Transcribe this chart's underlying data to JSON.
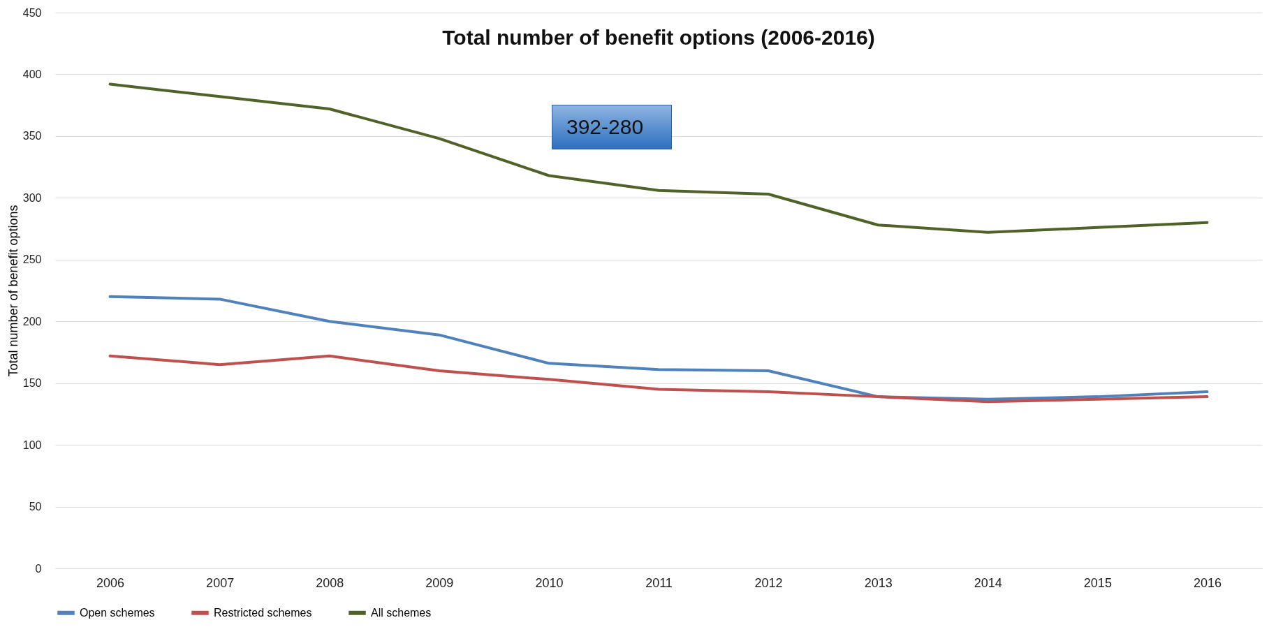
{
  "chart_data": {
    "type": "line",
    "title": "Total number of benefit options (2006-2016)",
    "ylabel": "Total number of benefit options",
    "categories": [
      "2006",
      "2007",
      "2008",
      "2009",
      "2010",
      "2011",
      "2012",
      "2013",
      "2014",
      "2015",
      "2016"
    ],
    "series": [
      {
        "name": "Open schemes",
        "color": "#4f81bd",
        "values": [
          220,
          218,
          200,
          189,
          166,
          161,
          160,
          139,
          137,
          139,
          143
        ]
      },
      {
        "name": "Restricted schemes",
        "color": "#c0504d",
        "values": [
          172,
          165,
          172,
          160,
          153,
          145,
          143,
          139,
          135,
          137,
          139
        ]
      },
      {
        "name": "All schemes",
        "color": "#4f6228",
        "values": [
          392,
          382,
          372,
          348,
          318,
          306,
          303,
          278,
          272,
          276,
          280
        ]
      }
    ],
    "ylim": [
      0,
      450
    ],
    "yticks": [
      0,
      50,
      100,
      150,
      200,
      250,
      300,
      350,
      400,
      450
    ],
    "grid": "y",
    "legend": "bottom",
    "marker": "none",
    "line_style": "solid",
    "annotations": [
      "392-280"
    ]
  }
}
